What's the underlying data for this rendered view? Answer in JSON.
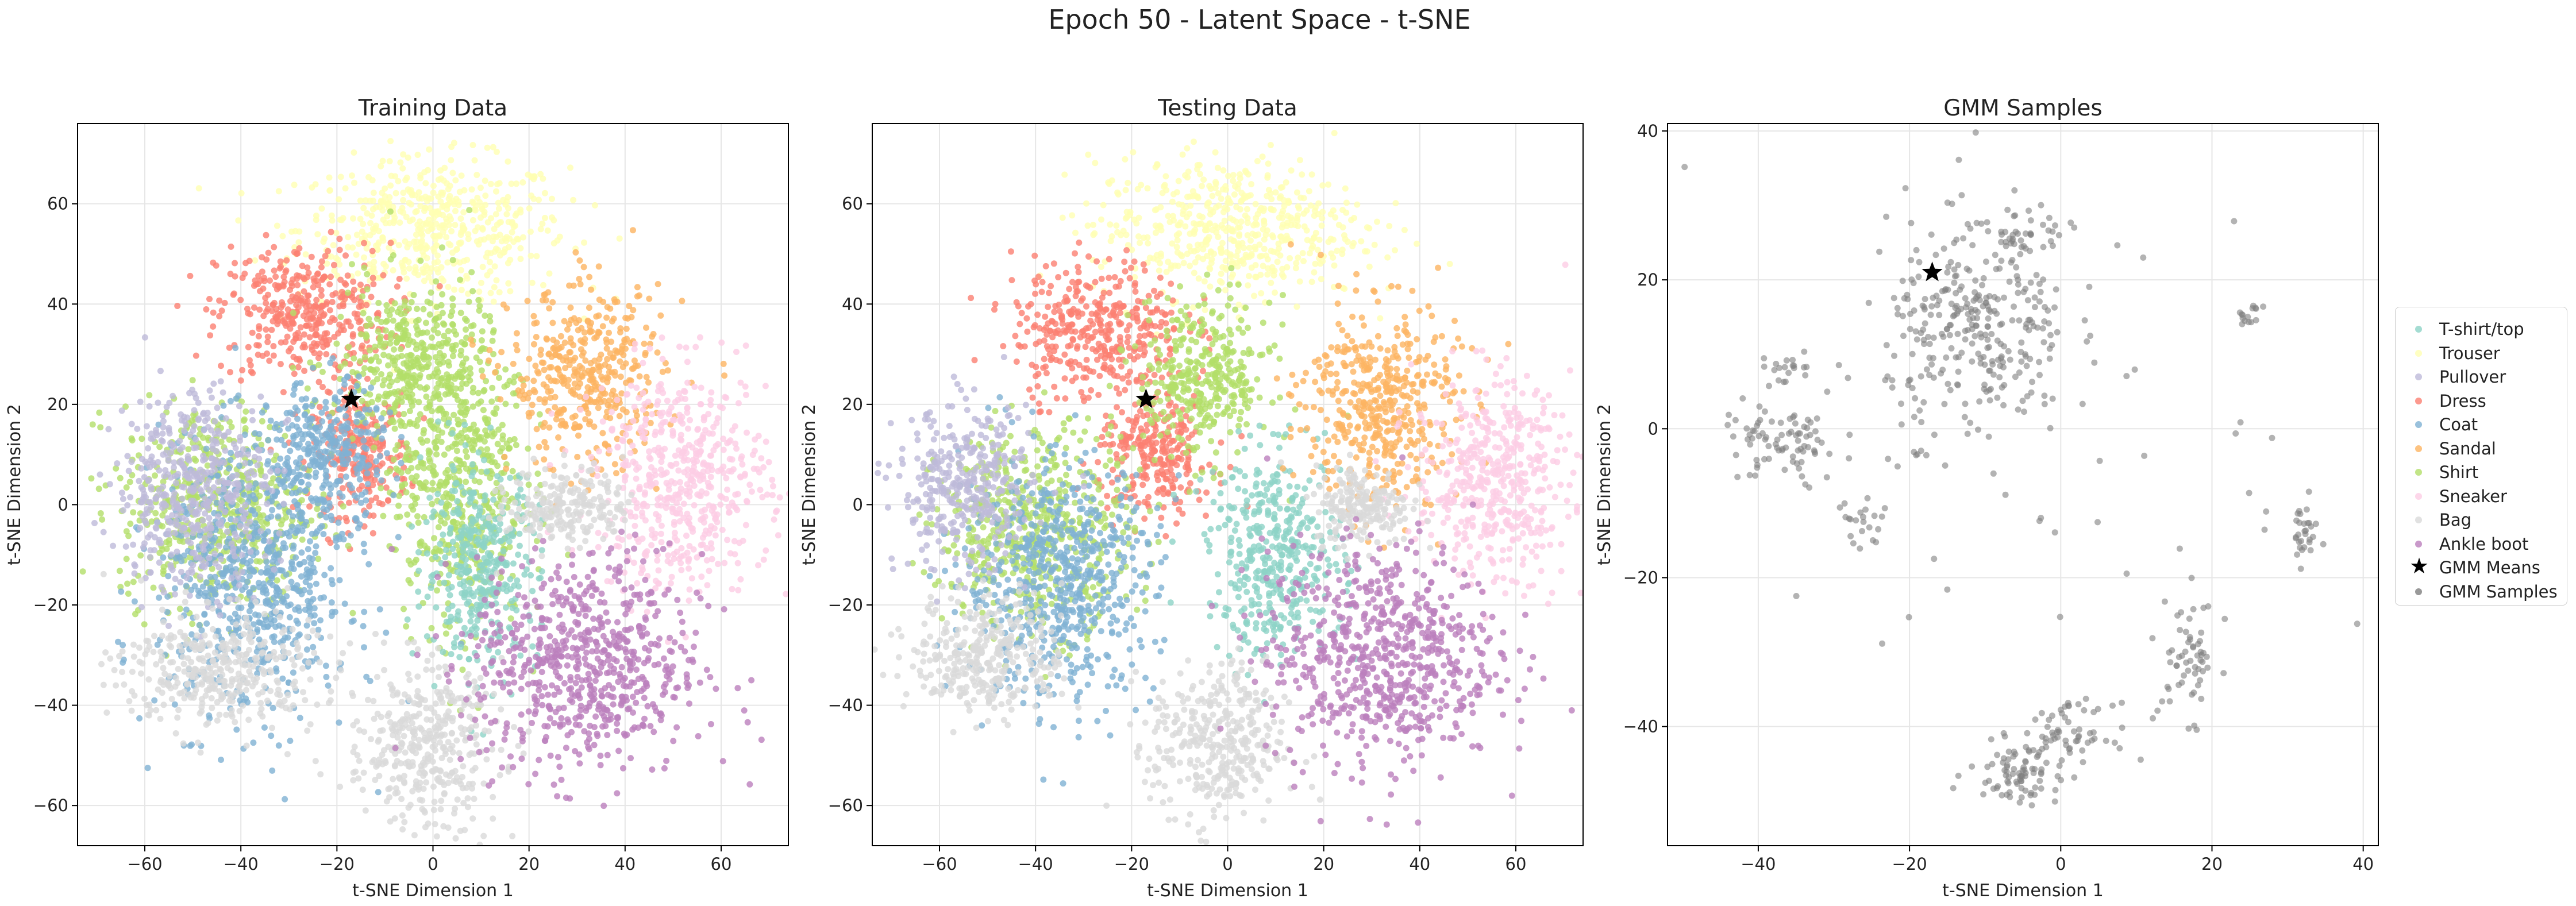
{
  "figure": {
    "suptitle": "Epoch 50 - Latent Space - t-SNE"
  },
  "colors": {
    "T-shirt/top": "#8dd3c7",
    "Trouser": "#ffffb3",
    "Pullover": "#bebada",
    "Dress": "#fb8072",
    "Coat": "#80b1d3",
    "Sandal": "#fdb462",
    "Shirt": "#b3de69",
    "Sneaker": "#fccde5",
    "Bag": "#d9d9d9",
    "Ankle boot": "#bc80bd",
    "gmm_sample": "#808080",
    "gmm_mean": "#000000"
  },
  "chart_data": [
    {
      "type": "scatter",
      "title": "Training Data",
      "xlabel": "t-SNE Dimension 1",
      "ylabel": "t-SNE Dimension 2",
      "xlim": [
        -74,
        74
      ],
      "ylim": [
        -68,
        76
      ],
      "xticks": [
        -60,
        -40,
        -20,
        0,
        20,
        40,
        60
      ],
      "yticks": [
        -60,
        -40,
        -20,
        0,
        20,
        40,
        60
      ],
      "grid": true,
      "gmm_means": [
        [
          -17,
          21
        ]
      ],
      "clusters": [
        {
          "label": "Trouser",
          "cx": 0,
          "cy": 55,
          "sx": 14,
          "sy": 7
        },
        {
          "label": "Dress",
          "cx": -27,
          "cy": 38,
          "sx": 9,
          "sy": 7
        },
        {
          "label": "Dress",
          "cx": -15,
          "cy": 10,
          "sx": 5,
          "sy": 6
        },
        {
          "label": "Shirt",
          "cx": -5,
          "cy": 28,
          "sx": 8,
          "sy": 8
        },
        {
          "label": "Shirt",
          "cx": -45,
          "cy": 0,
          "sx": 10,
          "sy": 10
        },
        {
          "label": "Shirt",
          "cx": 5,
          "cy": 5,
          "sx": 7,
          "sy": 15
        },
        {
          "label": "Coat",
          "cx": -37,
          "cy": -15,
          "sx": 10,
          "sy": 14
        },
        {
          "label": "Coat",
          "cx": -22,
          "cy": 10,
          "sx": 6,
          "sy": 7
        },
        {
          "label": "Pullover",
          "cx": -50,
          "cy": 3,
          "sx": 8,
          "sy": 10
        },
        {
          "label": "T-shirt/top",
          "cx": 10,
          "cy": -12,
          "sx": 6,
          "sy": 10
        },
        {
          "label": "Sandal",
          "cx": 32,
          "cy": 25,
          "sx": 8,
          "sy": 9
        },
        {
          "label": "Sneaker",
          "cx": 52,
          "cy": 5,
          "sx": 9,
          "sy": 11
        },
        {
          "label": "Bag",
          "cx": -45,
          "cy": -33,
          "sx": 10,
          "sy": 6
        },
        {
          "label": "Bag",
          "cx": -2,
          "cy": -48,
          "sx": 8,
          "sy": 8
        },
        {
          "label": "Bag",
          "cx": 28,
          "cy": 0,
          "sx": 6,
          "sy": 4
        },
        {
          "label": "Ankle boot",
          "cx": 32,
          "cy": -32,
          "sx": 12,
          "sy": 11
        }
      ]
    },
    {
      "type": "scatter",
      "title": "Testing Data",
      "xlabel": "t-SNE Dimension 1",
      "ylabel": "t-SNE Dimension 2",
      "xlim": [
        -74,
        74
      ],
      "ylim": [
        -68,
        76
      ],
      "xticks": [
        -60,
        -40,
        -20,
        0,
        20,
        40,
        60
      ],
      "yticks": [
        -60,
        -40,
        -20,
        0,
        20,
        40,
        60
      ],
      "grid": true,
      "gmm_means": [
        [
          -17,
          21
        ]
      ],
      "clusters": [
        {
          "label": "Trouser",
          "cx": 0,
          "cy": 55,
          "sx": 14,
          "sy": 7
        },
        {
          "label": "Dress",
          "cx": -27,
          "cy": 35,
          "sx": 9,
          "sy": 7
        },
        {
          "label": "Dress",
          "cx": -15,
          "cy": 10,
          "sx": 6,
          "sy": 6
        },
        {
          "label": "Shirt",
          "cx": -5,
          "cy": 25,
          "sx": 7,
          "sy": 8
        },
        {
          "label": "Shirt",
          "cx": -40,
          "cy": -5,
          "sx": 10,
          "sy": 10
        },
        {
          "label": "Coat",
          "cx": -35,
          "cy": -15,
          "sx": 10,
          "sy": 12
        },
        {
          "label": "Pullover",
          "cx": -55,
          "cy": 3,
          "sx": 7,
          "sy": 8
        },
        {
          "label": "T-shirt/top",
          "cx": 10,
          "cy": -10,
          "sx": 7,
          "sy": 10
        },
        {
          "label": "Sandal",
          "cx": 32,
          "cy": 20,
          "sx": 8,
          "sy": 10
        },
        {
          "label": "Sneaker",
          "cx": 55,
          "cy": 5,
          "sx": 8,
          "sy": 10
        },
        {
          "label": "Bag",
          "cx": -50,
          "cy": -30,
          "sx": 8,
          "sy": 6
        },
        {
          "label": "Bag",
          "cx": -2,
          "cy": -48,
          "sx": 7,
          "sy": 8
        },
        {
          "label": "Bag",
          "cx": 28,
          "cy": 0,
          "sx": 5,
          "sy": 4
        },
        {
          "label": "Ankle boot",
          "cx": 32,
          "cy": -30,
          "sx": 12,
          "sy": 11
        }
      ]
    },
    {
      "type": "scatter",
      "title": "GMM Samples",
      "xlabel": "t-SNE Dimension 1",
      "ylabel": "t-SNE Dimension 2",
      "xlim": [
        -52,
        42
      ],
      "ylim": [
        -56,
        41
      ],
      "xticks": [
        -40,
        -20,
        0,
        20,
        40
      ],
      "yticks": [
        -40,
        -20,
        0,
        20,
        40
      ],
      "grid": true,
      "gmm_means": [
        [
          -17,
          21
        ]
      ],
      "clusters": [
        {
          "label": "GMM Samples",
          "cx": -11,
          "cy": 13,
          "sx": 6,
          "sy": 7,
          "n": 300
        },
        {
          "label": "GMM Samples",
          "cx": -37,
          "cy": -2,
          "sx": 4,
          "sy": 3,
          "n": 80
        },
        {
          "label": "GMM Samples",
          "cx": -6,
          "cy": -46,
          "sx": 3,
          "sy": 2,
          "n": 80
        },
        {
          "label": "GMM Samples",
          "cx": 1,
          "cy": -41,
          "sx": 3,
          "sy": 2,
          "n": 60
        },
        {
          "label": "GMM Samples",
          "cx": 17,
          "cy": -31,
          "sx": 2,
          "sy": 4,
          "n": 60
        },
        {
          "label": "GMM Samples",
          "cx": 32,
          "cy": -14,
          "sx": 1,
          "sy": 2,
          "n": 30
        },
        {
          "label": "GMM Samples",
          "cx": 25,
          "cy": 15,
          "sx": 1,
          "sy": 1,
          "n": 15
        },
        {
          "label": "GMM Samples",
          "cx": -5,
          "cy": 26,
          "sx": 3,
          "sy": 2,
          "n": 40
        },
        {
          "label": "GMM Samples",
          "cx": -36,
          "cy": 8,
          "sx": 2,
          "sy": 1,
          "n": 20
        },
        {
          "label": "GMM Samples",
          "cx": -27,
          "cy": -13,
          "sx": 2,
          "sy": 2,
          "n": 20
        },
        {
          "label": "GMM Samples",
          "cx": 0,
          "cy": 0,
          "sx": 22,
          "sy": 22,
          "n": 60
        }
      ]
    }
  ],
  "legend": {
    "items": [
      {
        "label": "T-shirt/top",
        "kind": "dot"
      },
      {
        "label": "Trouser",
        "kind": "dot"
      },
      {
        "label": "Pullover",
        "kind": "dot"
      },
      {
        "label": "Dress",
        "kind": "dot"
      },
      {
        "label": "Coat",
        "kind": "dot"
      },
      {
        "label": "Sandal",
        "kind": "dot"
      },
      {
        "label": "Shirt",
        "kind": "dot"
      },
      {
        "label": "Sneaker",
        "kind": "dot"
      },
      {
        "label": "Bag",
        "kind": "dot"
      },
      {
        "label": "Ankle boot",
        "kind": "dot"
      },
      {
        "label": "GMM Means",
        "kind": "star"
      },
      {
        "label": "GMM Samples",
        "kind": "dot"
      }
    ]
  }
}
